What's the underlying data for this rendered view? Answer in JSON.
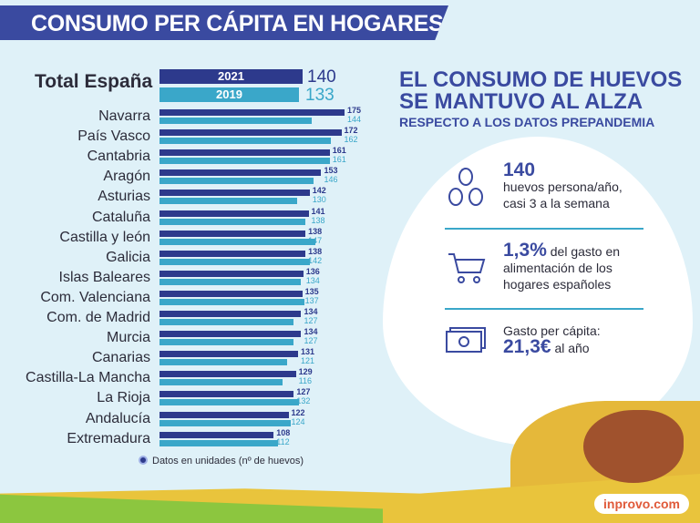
{
  "header": {
    "title": "CONSUMO PER CÁPITA EN HOGARES"
  },
  "colors": {
    "y2021": "#2d3a8c",
    "y2019": "#3aa7c9",
    "accent": "#3a4aa0"
  },
  "total": {
    "label": "Total España",
    "years": [
      {
        "year": "2021",
        "value": "140"
      },
      {
        "year": "2019",
        "value": "133"
      }
    ]
  },
  "chart_data": {
    "type": "bar",
    "orientation": "horizontal",
    "categories": [
      "Navarra",
      "País Vasco",
      "Cantabria",
      "Aragón",
      "Asturias",
      "Cataluña",
      "Castilla y león",
      "Galicia",
      "Islas Baleares",
      "Com. Valenciana",
      "Com. de Madrid",
      "Murcia",
      "Canarias",
      "Castilla-La Mancha",
      "La Rioja",
      "Andalucía",
      "Extremadura"
    ],
    "series": [
      {
        "name": "2021",
        "values": [
          175,
          172,
          161,
          153,
          142,
          141,
          138,
          138,
          136,
          135,
          134,
          134,
          131,
          129,
          127,
          122,
          108
        ]
      },
      {
        "name": "2019",
        "values": [
          144,
          162,
          161,
          146,
          130,
          138,
          147,
          142,
          134,
          137,
          127,
          127,
          121,
          116,
          132,
          124,
          112
        ]
      }
    ],
    "note": "Datos en unidades (nº de huevos)"
  },
  "right": {
    "title1": "EL CONSUMO DE HUEVOS",
    "title2": "SE MANTUVO AL ALZA",
    "subtitle": "RESPECTO A LOS DATOS PREPANDEMIA",
    "stat1": {
      "value": "140",
      "line1": "huevos persona/año,",
      "line2": "casi 3 a la semana",
      "icon": "eggs-icon"
    },
    "stat2": {
      "value": "1,3%",
      "rest": " del gasto en",
      "line2": "alimentación de los",
      "line3": "hogares españoles",
      "icon": "cart-icon"
    },
    "stat3": {
      "label": "Gasto per cápita:",
      "value": "21,3€",
      "rest": " al año",
      "icon": "banknote-icon"
    }
  },
  "brand": "inprovo.com"
}
